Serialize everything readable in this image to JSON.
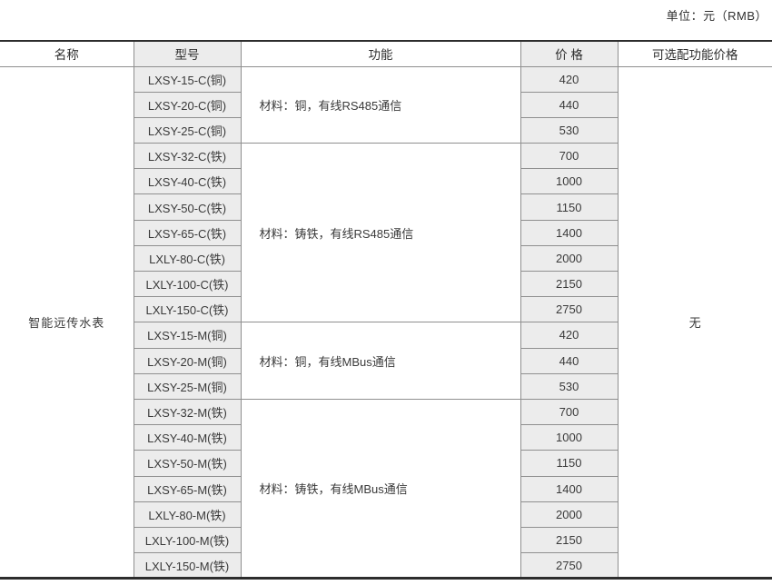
{
  "page": {
    "unit_label": "单位：元（RMB）"
  },
  "colors": {
    "cell_background": "#ececec",
    "grid_line": "#8f8f8f",
    "heavy_rule": "#2d2d2d",
    "text": "#3a3a3a"
  },
  "table": {
    "headers": [
      "名称",
      "型号",
      "功能",
      "价  格",
      "可选配功能价格"
    ],
    "product_name": "智能远传水表",
    "optional_price": "无",
    "groups": [
      {
        "function": "材料：铜，有线RS485通信",
        "rows": [
          {
            "model": "LXSY-15-C(铜)",
            "price": "420"
          },
          {
            "model": "LXSY-20-C(铜)",
            "price": "440"
          },
          {
            "model": "LXSY-25-C(铜)",
            "price": "530"
          }
        ]
      },
      {
        "function": "材料：铸铁，有线RS485通信",
        "rows": [
          {
            "model": "LXSY-32-C(铁)",
            "price": "700"
          },
          {
            "model": "LXSY-40-C(铁)",
            "price": "1000"
          },
          {
            "model": "LXSY-50-C(铁)",
            "price": "1150"
          },
          {
            "model": "LXSY-65-C(铁)",
            "price": "1400"
          },
          {
            "model": "LXLY-80-C(铁)",
            "price": "2000"
          },
          {
            "model": "LXLY-100-C(铁)",
            "price": "2150"
          },
          {
            "model": "LXLY-150-C(铁)",
            "price": "2750"
          }
        ]
      },
      {
        "function": "材料：铜，有线MBus通信",
        "rows": [
          {
            "model": "LXSY-15-M(铜)",
            "price": "420"
          },
          {
            "model": "LXSY-20-M(铜)",
            "price": "440"
          },
          {
            "model": "LXSY-25-M(铜)",
            "price": "530"
          }
        ]
      },
      {
        "function": "材料：铸铁，有线MBus通信",
        "rows": [
          {
            "model": "LXSY-32-M(铁)",
            "price": "700"
          },
          {
            "model": "LXSY-40-M(铁)",
            "price": "1000"
          },
          {
            "model": "LXSY-50-M(铁)",
            "price": "1150"
          },
          {
            "model": "LXSY-65-M(铁)",
            "price": "1400"
          },
          {
            "model": "LXLY-80-M(铁)",
            "price": "2000"
          },
          {
            "model": "LXLY-100-M(铁)",
            "price": "2150"
          },
          {
            "model": "LXLY-150-M(铁)",
            "price": "2750"
          }
        ]
      }
    ]
  }
}
